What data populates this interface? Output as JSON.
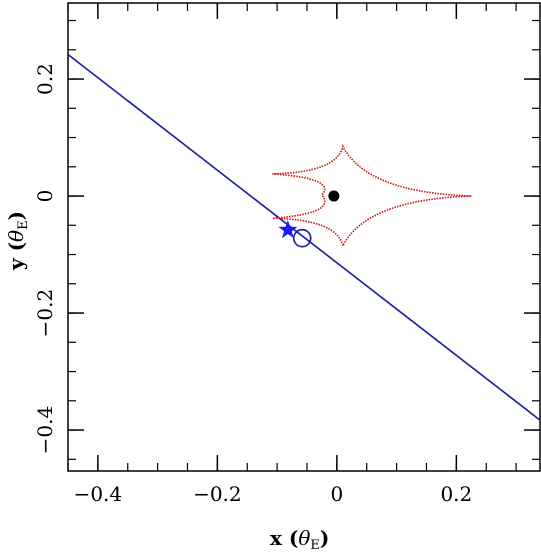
{
  "chart_data": {
    "type": "scatter",
    "title": "",
    "xlabel": "x (θ_E)",
    "ylabel": "y (θ_E)",
    "xlabel_parts": {
      "main": "x (",
      "theta": "θ",
      "sub": "E",
      "close": ")"
    },
    "ylabel_parts": {
      "main": "y (",
      "theta": "θ",
      "sub": "E",
      "close": ")"
    },
    "xlim": [
      -0.45,
      0.34
    ],
    "ylim": [
      -0.47,
      0.33
    ],
    "x_ticks": [
      -0.4,
      -0.2,
      0,
      0.2
    ],
    "x_tick_labels": [
      "−0.4",
      "−0.2",
      "0",
      "0.2"
    ],
    "y_ticks": [
      -0.4,
      -0.2,
      0,
      0.2
    ],
    "y_tick_labels": [
      "−0.4",
      "−0.2",
      "0",
      "0.2"
    ],
    "x_minor_step": 0.05,
    "y_minor_step": 0.05,
    "grid": false,
    "series": [
      {
        "kind": "line",
        "color": "#1a1aa8",
        "x": [
          -0.45,
          0.34
        ],
        "y": [
          0.242,
          -0.383
        ]
      },
      {
        "kind": "caustic",
        "color": "#cc1111",
        "cusps": {
          "right": [
            0.225,
            0.0
          ],
          "top": [
            0.01,
            0.085
          ],
          "bottom": [
            0.01,
            -0.085
          ],
          "upper_left": [
            -0.108,
            0.038
          ],
          "lower_left": [
            -0.108,
            -0.038
          ],
          "inner_left": [
            -0.025,
            0.002
          ]
        }
      },
      {
        "kind": "point",
        "name": "lens",
        "color": "#000000",
        "x": [
          -0.005
        ],
        "y": [
          0.0
        ]
      },
      {
        "kind": "point",
        "name": "source",
        "marker": "open-circle",
        "color": "#1a1aa8",
        "x": [
          -0.058
        ],
        "y": [
          -0.072
        ]
      },
      {
        "kind": "point",
        "name": "star",
        "marker": "star",
        "color": "#1a1aff",
        "x": [
          -0.082
        ],
        "y": [
          -0.058
        ]
      }
    ]
  }
}
